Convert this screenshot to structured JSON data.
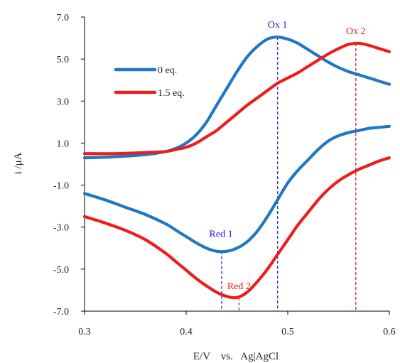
{
  "chart_data": {
    "type": "line",
    "title": "",
    "xlabel": "E/V    vs.   Ag|AgCl",
    "ylabel": "i /μA",
    "xlim": [
      0.3,
      0.6
    ],
    "ylim": [
      -7.0,
      7.0
    ],
    "x_ticks": [
      0.3,
      0.4,
      0.5,
      0.6
    ],
    "x_tick_labels": [
      "0.3",
      "0.4",
      "0.5",
      "0.6"
    ],
    "y_ticks": [
      7.0,
      5.0,
      3.0,
      1.0,
      -1.0,
      -3.0,
      -5.0,
      -7.0
    ],
    "y_tick_labels": [
      "7.0",
      "5.0",
      "3.0",
      "1.0",
      "-1.0",
      "-3.0",
      "-5.0",
      "-7.0"
    ],
    "grid": false,
    "legend_position": "upper-left",
    "series": [
      {
        "name": "0 eq.",
        "color": "#1f77c4",
        "forward": [
          [
            0.3,
            0.3
          ],
          [
            0.33,
            0.35
          ],
          [
            0.36,
            0.45
          ],
          [
            0.38,
            0.6
          ],
          [
            0.39,
            0.75
          ],
          [
            0.4,
            1.0
          ],
          [
            0.41,
            1.4
          ],
          [
            0.42,
            2.0
          ],
          [
            0.43,
            2.8
          ],
          [
            0.44,
            3.6
          ],
          [
            0.45,
            4.4
          ],
          [
            0.46,
            5.1
          ],
          [
            0.47,
            5.6
          ],
          [
            0.48,
            5.95
          ],
          [
            0.49,
            6.05
          ],
          [
            0.5,
            5.95
          ],
          [
            0.51,
            5.75
          ],
          [
            0.52,
            5.45
          ],
          [
            0.53,
            5.15
          ],
          [
            0.54,
            4.85
          ],
          [
            0.55,
            4.6
          ],
          [
            0.56,
            4.4
          ],
          [
            0.57,
            4.25
          ],
          [
            0.58,
            4.1
          ],
          [
            0.59,
            3.95
          ],
          [
            0.6,
            3.8
          ]
        ],
        "reverse": [
          [
            0.6,
            1.8
          ],
          [
            0.59,
            1.75
          ],
          [
            0.58,
            1.7
          ],
          [
            0.57,
            1.6
          ],
          [
            0.56,
            1.5
          ],
          [
            0.55,
            1.35
          ],
          [
            0.54,
            1.1
          ],
          [
            0.53,
            0.7
          ],
          [
            0.52,
            0.2
          ],
          [
            0.51,
            -0.3
          ],
          [
            0.5,
            -0.9
          ],
          [
            0.49,
            -1.7
          ],
          [
            0.48,
            -2.5
          ],
          [
            0.47,
            -3.2
          ],
          [
            0.46,
            -3.7
          ],
          [
            0.45,
            -4.0
          ],
          [
            0.44,
            -4.15
          ],
          [
            0.43,
            -4.15
          ],
          [
            0.42,
            -4.0
          ],
          [
            0.41,
            -3.75
          ],
          [
            0.4,
            -3.45
          ],
          [
            0.39,
            -3.15
          ],
          [
            0.38,
            -2.85
          ],
          [
            0.36,
            -2.4
          ],
          [
            0.34,
            -2.05
          ],
          [
            0.32,
            -1.7
          ],
          [
            0.3,
            -1.4
          ]
        ]
      },
      {
        "name": "1.5 eq.",
        "color": "#ee1c1c",
        "forward": [
          [
            0.3,
            0.5
          ],
          [
            0.33,
            0.5
          ],
          [
            0.36,
            0.55
          ],
          [
            0.38,
            0.6
          ],
          [
            0.39,
            0.7
          ],
          [
            0.4,
            0.8
          ],
          [
            0.41,
            1.0
          ],
          [
            0.42,
            1.3
          ],
          [
            0.43,
            1.6
          ],
          [
            0.44,
            2.0
          ],
          [
            0.45,
            2.4
          ],
          [
            0.46,
            2.8
          ],
          [
            0.47,
            3.15
          ],
          [
            0.48,
            3.5
          ],
          [
            0.49,
            3.85
          ],
          [
            0.5,
            4.1
          ],
          [
            0.51,
            4.35
          ],
          [
            0.52,
            4.65
          ],
          [
            0.53,
            4.95
          ],
          [
            0.54,
            5.25
          ],
          [
            0.55,
            5.5
          ],
          [
            0.56,
            5.7
          ],
          [
            0.57,
            5.75
          ],
          [
            0.58,
            5.65
          ],
          [
            0.59,
            5.5
          ],
          [
            0.6,
            5.35
          ]
        ],
        "reverse": [
          [
            0.6,
            0.3
          ],
          [
            0.59,
            0.15
          ],
          [
            0.58,
            -0.05
          ],
          [
            0.57,
            -0.25
          ],
          [
            0.56,
            -0.5
          ],
          [
            0.55,
            -0.8
          ],
          [
            0.54,
            -1.2
          ],
          [
            0.53,
            -1.7
          ],
          [
            0.52,
            -2.3
          ],
          [
            0.51,
            -2.9
          ],
          [
            0.5,
            -3.6
          ],
          [
            0.49,
            -4.3
          ],
          [
            0.48,
            -5.0
          ],
          [
            0.47,
            -5.6
          ],
          [
            0.46,
            -6.1
          ],
          [
            0.45,
            -6.35
          ],
          [
            0.44,
            -6.3
          ],
          [
            0.43,
            -6.1
          ],
          [
            0.42,
            -5.8
          ],
          [
            0.41,
            -5.45
          ],
          [
            0.4,
            -5.05
          ],
          [
            0.39,
            -4.65
          ],
          [
            0.38,
            -4.25
          ],
          [
            0.36,
            -3.6
          ],
          [
            0.34,
            -3.15
          ],
          [
            0.32,
            -2.8
          ],
          [
            0.3,
            -2.5
          ]
        ]
      }
    ],
    "annotations": [
      {
        "text": "Ox 1",
        "x": 0.49,
        "y": 6.05,
        "color": "#1a1ae6"
      },
      {
        "text": "Ox 2",
        "x": 0.567,
        "y": 5.75,
        "color": "#e61a1a"
      },
      {
        "text": "Red 1",
        "x": 0.435,
        "y": -4.15,
        "color": "#1a1ae6"
      },
      {
        "text": "Red 2",
        "x": 0.452,
        "y": -6.35,
        "color": "#e61a1a"
      }
    ]
  }
}
